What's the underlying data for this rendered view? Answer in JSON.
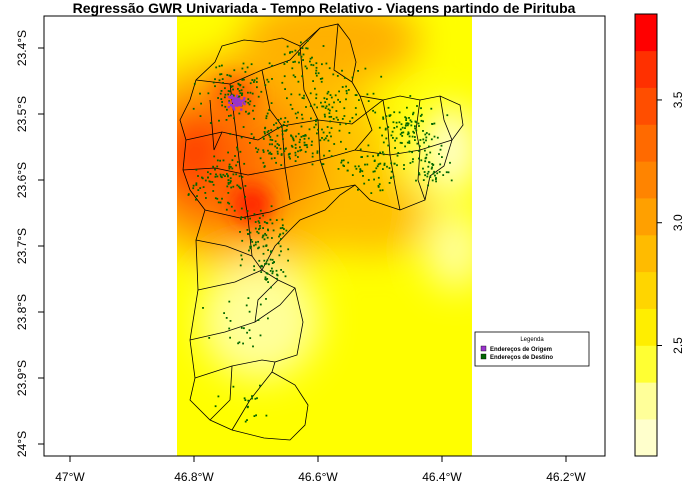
{
  "title": "Regressão GWR Univariada - Tempo Relativo - Viagens partindo de Pirituba",
  "axes": {
    "x_ticks": [
      {
        "value": -47.0,
        "label": "47°W"
      },
      {
        "value": -46.8,
        "label": "46.8°W"
      },
      {
        "value": -46.6,
        "label": "46.6°W"
      },
      {
        "value": -46.4,
        "label": "46.4°W"
      },
      {
        "value": -46.2,
        "label": "46.2°W"
      }
    ],
    "y_ticks": [
      {
        "value": -23.4,
        "label": "23.4°S"
      },
      {
        "value": -23.5,
        "label": "23.5°S"
      },
      {
        "value": -23.6,
        "label": "23.6°S"
      },
      {
        "value": -23.7,
        "label": "23.7°S"
      },
      {
        "value": -23.8,
        "label": "23.8°S"
      },
      {
        "value": -23.9,
        "label": "23.9°S"
      },
      {
        "value": -24.0,
        "label": "24°S"
      }
    ]
  },
  "colorbar": {
    "ticks": [
      {
        "value": 2.5,
        "label": "2.5"
      },
      {
        "value": 3.0,
        "label": "3.0"
      },
      {
        "value": 3.5,
        "label": "3.5"
      }
    ],
    "min": 2.05,
    "max": 3.85,
    "colors": [
      "#ffffcc",
      "#ffff99",
      "#ffff33",
      "#ffee00",
      "#ffd500",
      "#ffbb00",
      "#ffa000",
      "#ff8400",
      "#ff6a00",
      "#ff4e00",
      "#ff3000",
      "#ff0000"
    ]
  },
  "legend": {
    "title": "Legenda",
    "items": [
      {
        "label": "Endereços de Origem",
        "color": "#9933cc"
      },
      {
        "label": "Endereços de Destino",
        "color": "#006600"
      }
    ]
  },
  "map": {
    "background_color": "#ffff00",
    "boundary_color": "#000000",
    "origin_color": "#9933cc",
    "destination_color": "#006600"
  }
}
